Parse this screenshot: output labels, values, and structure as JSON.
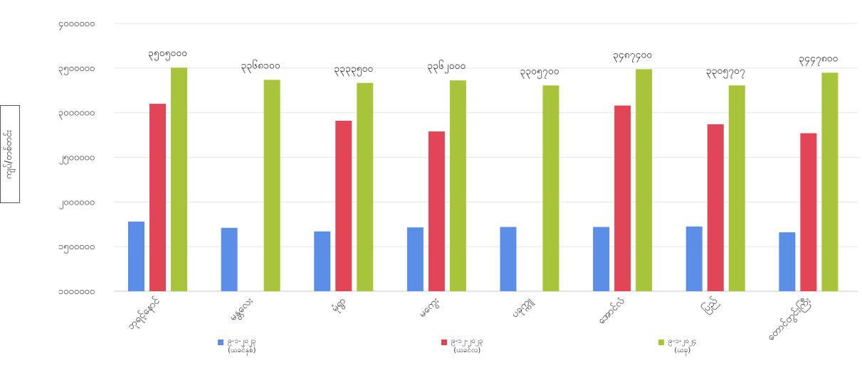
{
  "chart_data": {
    "type": "bar",
    "ylabel": "ကျပ်/တစ်တင်း",
    "ylim": [
      0,
      5000000
    ],
    "ytick_labels": [
      "၁၀၀၀၀၀၀",
      "၁၅၀၀၀၀၀",
      "၂၀၀၀၀၀၀",
      "၂၅၀၀၀၀၀",
      "၃၀၀၀၀၀၀",
      "၃၅၀၀၀၀၀",
      "၄၀၀၀၀၀၀"
    ],
    "ytick_values": [
      1000000,
      1500000,
      2000000,
      2500000,
      3000000,
      3500000,
      4000000
    ],
    "categories": [
      "ဘုရင့်နောင်",
      "မန္တလေး",
      "မုံရွာ",
      "မကွေး",
      "ပခုက္ကူ",
      "အောင်လံ",
      "ပြည်",
      "တောင်တွင်းကြီး"
    ],
    "series": [
      {
        "name": "၉-၁-၂၀၂၃",
        "sublabel": "(ယခင်နှစ်)",
        "color": "#5b8ee6",
        "values": [
          1780000,
          1710000,
          1670000,
          1715000,
          1720000,
          1720000,
          1725000,
          1660000
        ]
      },
      {
        "name": "၉-၁၂-၂၀၂၃",
        "sublabel": "(ယခင်လ)",
        "color": "#e14657",
        "values": [
          3100000,
          null,
          2910000,
          2790000,
          null,
          3080000,
          2870000,
          2770000
        ]
      },
      {
        "name": "၉-၁-၂၀၂၄",
        "sublabel": "(ယခု)",
        "color": "#a8c43a",
        "values": [
          3505000,
          3368100,
          3333500,
          3362000,
          3305700,
          3487400,
          3305707,
          3447800
        ]
      }
    ],
    "data_labels": [
      "၃၅၀၅၀၀၀",
      "၃၃၆၈၁၀၀",
      "၃၃၃၃၅၀၀",
      "၃၃၆၂၀၀၀",
      "၃၃၀၅၇၀၀",
      "၃၄၈၇၄၀၀",
      "၃၃၀၅၇၀၇",
      "၃၄၄၇၈၀၀"
    ],
    "grid": true,
    "legend_position": "bottom"
  }
}
